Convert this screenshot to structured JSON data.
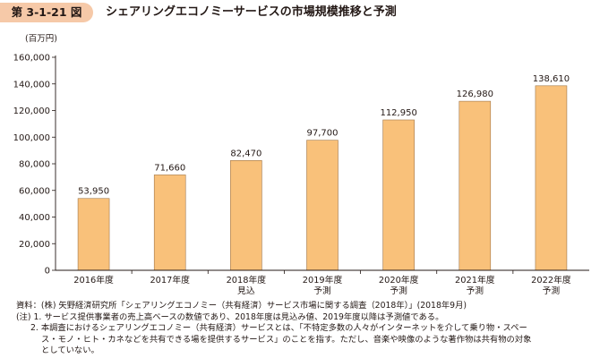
{
  "header": {
    "badge": "第 3-1-21 図",
    "title": "シェアリングエコノミーサービスの市場規模推移と予測"
  },
  "chart_data": {
    "type": "bar",
    "unit_label": "(百万円)",
    "categories": [
      [
        "2016年度"
      ],
      [
        "2017年度"
      ],
      [
        "2018年度",
        "見込"
      ],
      [
        "2019年度",
        "予測"
      ],
      [
        "2020年度",
        "予測"
      ],
      [
        "2021年度",
        "予測"
      ],
      [
        "2022年度",
        "予測"
      ]
    ],
    "values": [
      53950,
      71660,
      82470,
      97700,
      112950,
      126980,
      138610
    ],
    "value_labels": [
      "53,950",
      "71,660",
      "82,470",
      "97,700",
      "112,950",
      "126,980",
      "138,610"
    ],
    "ylim": [
      0,
      160000
    ],
    "yticks": [
      0,
      20000,
      40000,
      60000,
      80000,
      100000,
      120000,
      140000,
      160000
    ],
    "ytick_labels": [
      "0",
      "20,000",
      "40,000",
      "60,000",
      "80,000",
      "100,000",
      "120,000",
      "140,000",
      "160,000"
    ],
    "bar_color": "#f9c17a",
    "bar_edge_color": "#a0774a",
    "grid": false
  },
  "notes": {
    "source": "資料：(株) 矢野経済研究所「シェアリングエコノミー（共有経済）サービス市場に関する調査（2018年）」(2018年9月)",
    "note1": "(注) 1. サービス提供事業者の売上高ベースの数値であり、2018年度は見込み値、2019年度以降は予測値である。",
    "note2a": "2. 本調査におけるシェアリングエコノミー（共有経済）サービスとは、「不特定多数の人々がインターネットを介して乗り物・スペー",
    "note2b": "ス・モノ・ヒト・カネなどを共有できる場を提供するサービス」のことを指す。ただし、音楽や映像のような著作物は共有物の対象",
    "note2c": "としていない。"
  }
}
